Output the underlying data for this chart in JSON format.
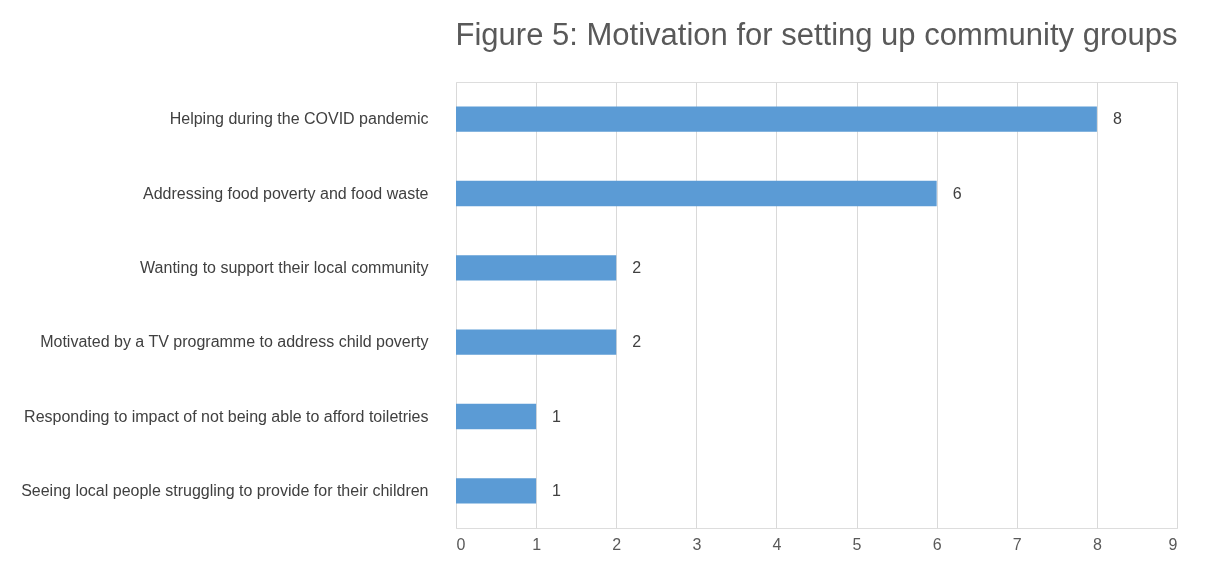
{
  "chart_data": {
    "type": "bar",
    "orientation": "horizontal",
    "title": "Figure 5: Motivation for setting up community groups",
    "categories": [
      "Helping during the COVID pandemic",
      "Addressing food poverty and food waste",
      "Wanting to support their local community",
      "Motivated by a TV programme to address child poverty",
      "Responding to impact of not being able to afford toiletries",
      "Seeing local people struggling to provide for their children"
    ],
    "values": [
      8,
      6,
      2,
      2,
      1,
      1
    ],
    "color": "#5b9bd5",
    "xlim": [
      0,
      9
    ],
    "xticks": [
      0,
      1,
      2,
      3,
      4,
      5,
      6,
      7,
      8,
      9
    ],
    "grid": "x",
    "data_labels": true
  }
}
